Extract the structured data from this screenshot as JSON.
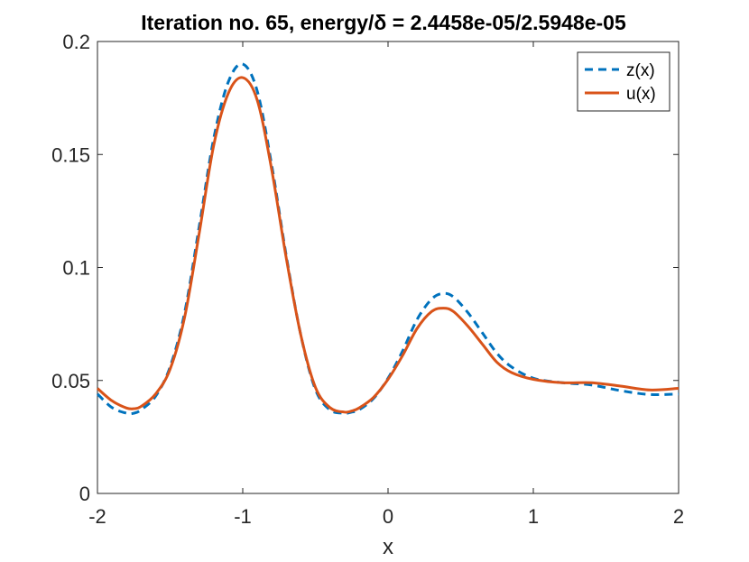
{
  "chart_data": {
    "type": "line",
    "title": "Iteration no. 65, energy/δ = 2.4458e-05/2.5948e-05",
    "xlabel": "x",
    "ylabel": "",
    "xlim": [
      -2,
      2
    ],
    "ylim": [
      0,
      0.2
    ],
    "xticks": [
      "-2",
      "-1",
      "0",
      "1",
      "2"
    ],
    "yticks": [
      "0",
      "0.05",
      "0.1",
      "0.15",
      "0.2"
    ],
    "grid": false,
    "legend_position": "top-right",
    "series": [
      {
        "name": "z(x)",
        "style": "dashed",
        "color": "#0072BD",
        "x": [
          -2.0,
          -1.9,
          -1.8,
          -1.75,
          -1.7,
          -1.6,
          -1.5,
          -1.4,
          -1.3,
          -1.2,
          -1.1,
          -1.0,
          -0.9,
          -0.8,
          -0.7,
          -0.6,
          -0.5,
          -0.4,
          -0.3,
          -0.25,
          -0.2,
          -0.1,
          0.0,
          0.1,
          0.2,
          0.3,
          0.38,
          0.45,
          0.55,
          0.65,
          0.75,
          0.85,
          1.0,
          1.2,
          1.4,
          1.6,
          1.8,
          2.0
        ],
        "y": [
          0.044,
          0.038,
          0.0355,
          0.0355,
          0.037,
          0.043,
          0.056,
          0.08,
          0.118,
          0.157,
          0.182,
          0.19,
          0.178,
          0.145,
          0.105,
          0.07,
          0.046,
          0.037,
          0.0355,
          0.036,
          0.037,
          0.042,
          0.051,
          0.063,
          0.077,
          0.086,
          0.0885,
          0.087,
          0.08,
          0.071,
          0.062,
          0.056,
          0.051,
          0.049,
          0.048,
          0.0455,
          0.0438,
          0.044
        ]
      },
      {
        "name": "u(x)",
        "style": "solid",
        "color": "#D95319",
        "x": [
          -2.0,
          -1.9,
          -1.8,
          -1.75,
          -1.7,
          -1.6,
          -1.5,
          -1.4,
          -1.3,
          -1.2,
          -1.1,
          -1.0,
          -0.9,
          -0.8,
          -0.7,
          -0.6,
          -0.5,
          -0.4,
          -0.3,
          -0.25,
          -0.2,
          -0.1,
          0.0,
          0.1,
          0.2,
          0.3,
          0.38,
          0.45,
          0.55,
          0.65,
          0.75,
          0.85,
          1.0,
          1.2,
          1.4,
          1.6,
          1.8,
          2.0
        ],
        "y": [
          0.0465,
          0.041,
          0.0378,
          0.0375,
          0.0385,
          0.044,
          0.055,
          0.078,
          0.115,
          0.154,
          0.177,
          0.184,
          0.174,
          0.143,
          0.104,
          0.07,
          0.047,
          0.038,
          0.036,
          0.0365,
          0.0378,
          0.0425,
          0.0505,
          0.061,
          0.073,
          0.0805,
          0.082,
          0.0805,
          0.074,
          0.066,
          0.058,
          0.0535,
          0.0505,
          0.049,
          0.049,
          0.0475,
          0.0458,
          0.0465
        ]
      }
    ]
  }
}
